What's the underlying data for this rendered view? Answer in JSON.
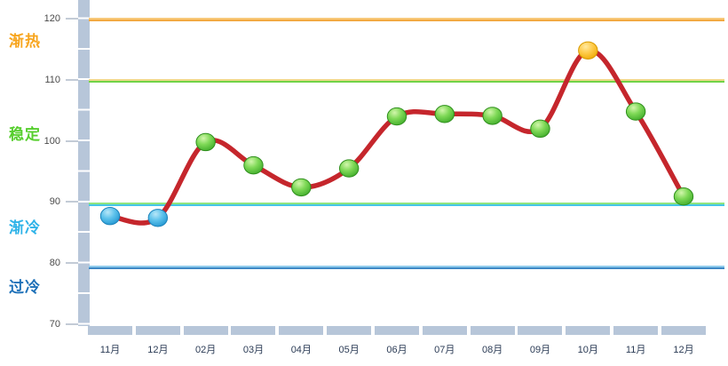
{
  "chart_data": {
    "type": "line",
    "title": "",
    "categories": [
      "11月",
      "12月",
      "02月",
      "03月",
      "04月",
      "05月",
      "06月",
      "07月",
      "08月",
      "09月",
      "10月",
      "11月",
      "12月"
    ],
    "series": [
      {
        "values": [
          87.7,
          87.4,
          99.8,
          96.0,
          92.4,
          95.5,
          104.0,
          104.4,
          104.1,
          102.0,
          114.8,
          104.8,
          90.9
        ],
        "line_color": "#C5262C",
        "point_styles": [
          "blue",
          "blue",
          "green",
          "green",
          "green",
          "green",
          "green",
          "green",
          "green",
          "green",
          "yellow",
          "green",
          "green"
        ]
      }
    ],
    "ylim": [
      70,
      120
    ],
    "yticks": [
      120,
      110,
      100,
      90,
      80,
      70
    ],
    "grid": false,
    "legend_position": "none",
    "thresholds": [
      {
        "value": 119.9,
        "top_color": "#F8C979",
        "bottom_color": "#F2A942"
      },
      {
        "value": 109.8,
        "top_color": "#EFD98A",
        "bottom_color": "#70D348"
      },
      {
        "value": 89.6,
        "top_color": "#90E57F",
        "bottom_color": "#45C6E8"
      },
      {
        "value": 79.3,
        "top_color": "#8FCBEC",
        "bottom_color": "#3E88C5"
      }
    ],
    "zones": [
      {
        "label": "渐热",
        "range": [
          110.0,
          119.9
        ],
        "color": "#F7A51E"
      },
      {
        "label": "稳定",
        "range": [
          89.6,
          109.8
        ],
        "color": "#56CE2D"
      },
      {
        "label": "渐冷",
        "range": [
          79.3,
          89.6
        ],
        "color": "#2FB3E8"
      },
      {
        "label": "过冷",
        "range": [
          70.0,
          79.3
        ],
        "color": "#1D70B8"
      }
    ]
  },
  "styles": {
    "axis_band_color": "#B7C6D9",
    "y_tick_text_color": "#4a4a4a",
    "x_label_text_color": "#2b3b55",
    "marker_styles": {
      "green": {
        "light": "#D2F6AC",
        "mid": "#7FD957",
        "dark": "#3CA928",
        "edge": "#2F8F1D"
      },
      "blue": {
        "light": "#B8E7F8",
        "mid": "#5FC3EC",
        "dark": "#1E93CF",
        "edge": "#1B82BA"
      },
      "yellow": {
        "light": "#FFE9A0",
        "mid": "#FFCC4D",
        "dark": "#EFA900",
        "edge": "#D89A00"
      }
    }
  }
}
